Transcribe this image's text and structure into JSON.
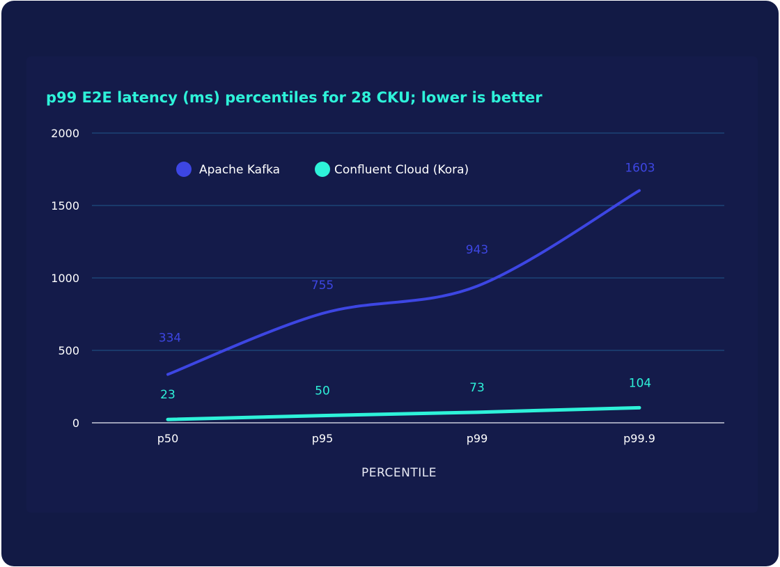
{
  "chart_data": {
    "type": "line",
    "title": "p99 E2E latency (ms) percentiles for 28 CKU; lower is better",
    "xlabel": "PERCENTILE",
    "ylabel": "",
    "categories": [
      "p50",
      "p95",
      "p99",
      "p99.9"
    ],
    "y_ticks": [
      "0",
      "500",
      "1000",
      "1500",
      "2000"
    ],
    "ylim": [
      0,
      2000
    ],
    "grid": true,
    "legend_position": "top",
    "series": [
      {
        "name": "Apache Kafka",
        "values": [
          334,
          755,
          943,
          1603
        ],
        "labels": [
          "334",
          "755",
          "943",
          "1603"
        ],
        "color": "#3d46e3",
        "smooth": true
      },
      {
        "name": "Confluent Cloud (Kora)",
        "values": [
          23,
          50,
          73,
          104
        ],
        "labels": [
          "23",
          "50",
          "73",
          "104"
        ],
        "color": "#2ef2d9",
        "smooth": false
      }
    ]
  }
}
